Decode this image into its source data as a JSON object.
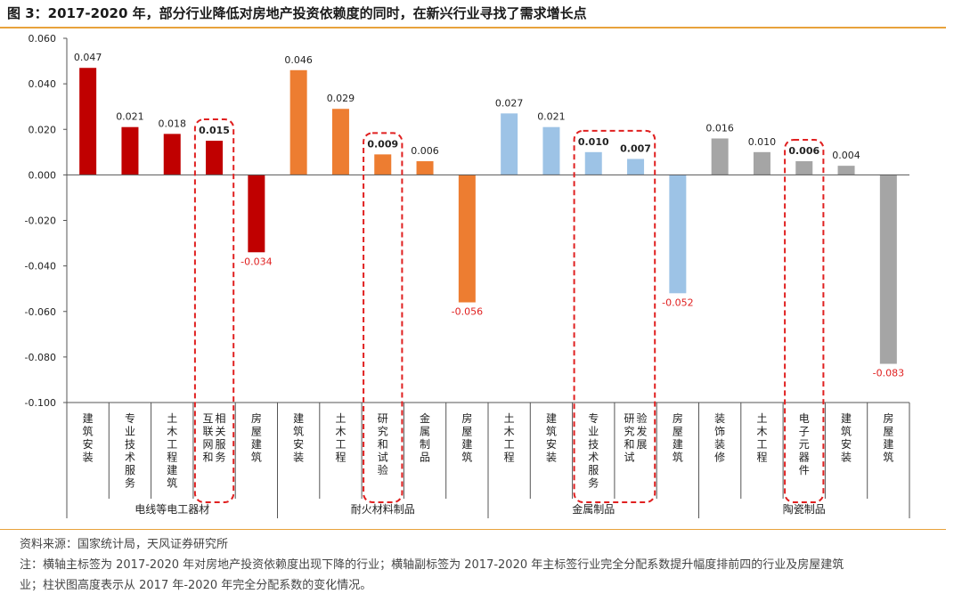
{
  "figure": {
    "title": "图 3：2017-2020 年，部分行业降低对房地产投资依赖度的同时，在新兴行业寻找了需求增长点",
    "source": "资料来源：国家统计局，天风证券研究所",
    "note_line1": "注：横轴主标签为 2017-2020 年对房地产投资依赖度出现下降的行业；横轴副标签为 2017-2020 年主标签行业完全分配系数提升幅度排前四的行业及房屋建筑",
    "note_line2": "业；柱状图高度表示从 2017 年-2020 年完全分配系数的变化情况。"
  },
  "chart_data": {
    "type": "bar",
    "ylim": [
      -0.1,
      0.06
    ],
    "yticks": [
      "0.060",
      "0.040",
      "0.020",
      "0.000",
      "-0.020",
      "-0.040",
      "-0.060",
      "-0.080",
      "-0.100"
    ],
    "grid": false,
    "groups": [
      {
        "name": "电线等电工器材",
        "color": "#c00000",
        "categories": [
          "建筑安装",
          "专业技术服务",
          "土木工程建筑",
          "互联网和相关服务",
          "房屋建筑"
        ],
        "values": [
          0.047,
          0.021,
          0.018,
          0.015,
          -0.034
        ],
        "labels": [
          "0.047",
          "0.021",
          "0.018",
          "0.015",
          "-0.034"
        ],
        "highlighted": [
          3
        ]
      },
      {
        "name": "耐火材料制品",
        "color": "#ed7d31",
        "categories": [
          "建筑安装",
          "土木工程",
          "研究和试验",
          "金属制品",
          "房屋建筑"
        ],
        "values": [
          0.046,
          0.029,
          0.009,
          0.006,
          -0.056
        ],
        "labels": [
          "0.046",
          "0.029",
          "0.009",
          "0.006",
          "-0.056"
        ],
        "highlighted": [
          2
        ]
      },
      {
        "name": "金属制品",
        "color": "#9dc3e6",
        "categories": [
          "土木工程",
          "建筑安装",
          "专业技术服务",
          "研究和试验发展",
          "房屋建筑"
        ],
        "values": [
          0.027,
          0.021,
          0.01,
          0.007,
          -0.052
        ],
        "labels": [
          "0.027",
          "0.021",
          "0.010",
          "0.007",
          "-0.052"
        ],
        "highlighted": [
          2,
          3
        ]
      },
      {
        "name": "陶瓷制品",
        "color": "#a5a5a5",
        "categories": [
          "装饰装修",
          "土木工程",
          "电子元器件",
          "建筑安装",
          "房屋建筑"
        ],
        "values": [
          0.016,
          0.01,
          0.006,
          0.004,
          -0.083
        ],
        "labels": [
          "0.016",
          "0.010",
          "0.006",
          "0.004",
          "-0.083"
        ],
        "highlighted": [
          2
        ]
      }
    ],
    "negative_label_color": "#e02020",
    "highlight_box_color": "#e02020"
  }
}
